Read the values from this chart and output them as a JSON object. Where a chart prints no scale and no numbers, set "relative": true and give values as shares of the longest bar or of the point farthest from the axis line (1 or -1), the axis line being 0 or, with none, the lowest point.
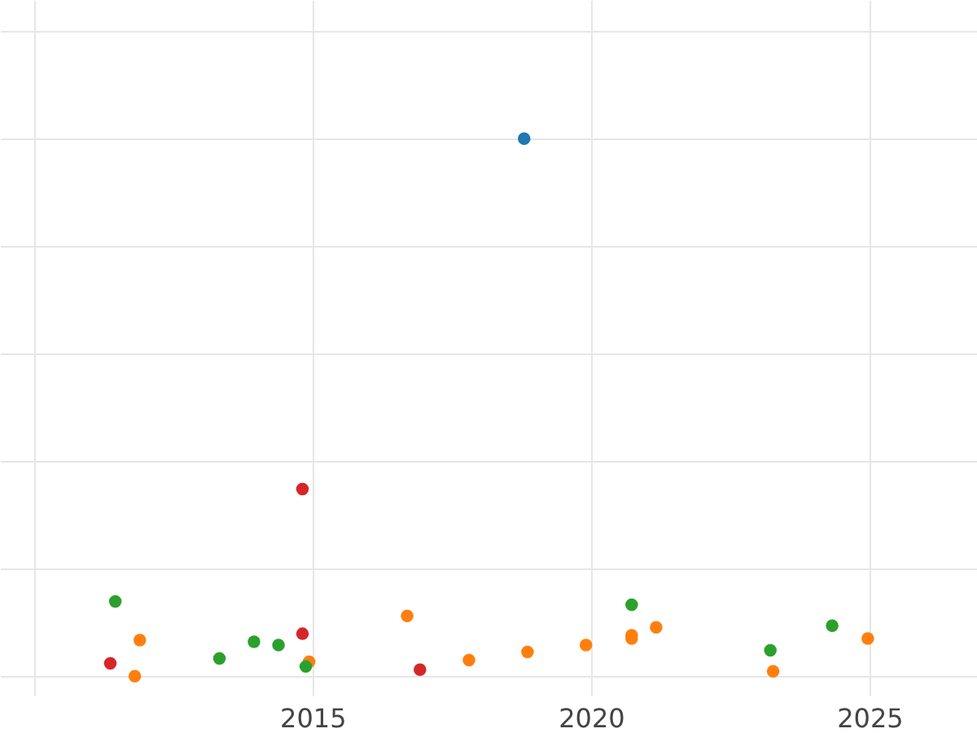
{
  "chart_data": {
    "type": "scatter",
    "relative": true,
    "grid": true,
    "marker": "circle",
    "xlim": [
      2009.39,
      2026.93
    ],
    "xticks": [
      {
        "value": 2010,
        "label": null
      },
      2015,
      2020,
      2025
    ],
    "tick_labels": "x",
    "series": [
      {
        "color": "#1f77b4",
        "x": [
          2018.8
        ],
        "values": [
          1.0
        ]
      },
      {
        "color": "#d62728",
        "x": [
          2011.37,
          2014.82,
          2014.82,
          2016.93
        ],
        "values": [
          0.024,
          0.348,
          0.079,
          0.012
        ]
      },
      {
        "color": "#ff7f0e",
        "x": [
          2011.9,
          2011.81,
          2014.94,
          2016.7,
          2017.81,
          2018.86,
          2019.91,
          2020.73,
          2020.73,
          2021.17,
          2023.27,
          2024.97
        ],
        "values": [
          0.067,
          0,
          0.027,
          0.112,
          0.03,
          0.045,
          0.058,
          0.076,
          0.07,
          0.091,
          0.009,
          0.07
        ]
      },
      {
        "color": "#2ca02c",
        "x": [
          2011.46,
          2013.33,
          2013.95,
          2014.39,
          2014.88,
          2020.73,
          2023.22,
          2024.33
        ],
        "values": [
          0.139,
          0.033,
          0.064,
          0.058,
          0.018,
          0.133,
          0.048,
          0.094
        ]
      }
    ]
  }
}
